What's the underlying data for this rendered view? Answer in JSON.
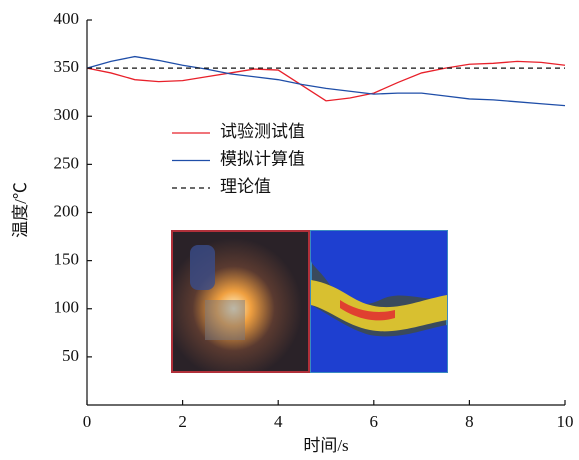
{
  "chart_data": {
    "type": "line",
    "x_label": "时间/s",
    "y_label": "温度/℃",
    "x": [
      0,
      0.5,
      1,
      1.5,
      2,
      2.5,
      3,
      3.5,
      4,
      4.5,
      5,
      5.5,
      6,
      6.5,
      7,
      7.5,
      8,
      8.5,
      9,
      9.5,
      10
    ],
    "series": [
      {
        "name": "试验测试值",
        "color": "#e8202a",
        "dash": false,
        "values": [
          350,
          345,
          338,
          336,
          337,
          341,
          345,
          349,
          348,
          332,
          316,
          319,
          324,
          335,
          345,
          350,
          354,
          355,
          357,
          356,
          353
        ]
      },
      {
        "name": "模拟计算值",
        "color": "#1f4ea8",
        "dash": false,
        "values": [
          350,
          357,
          362,
          358,
          353,
          349,
          344,
          341,
          338,
          333,
          329,
          326,
          323,
          324,
          324,
          321,
          318,
          317,
          315,
          313,
          311
        ]
      },
      {
        "name": "理论值",
        "color": "#111111",
        "dash": true,
        "values": [
          350,
          350,
          350,
          350,
          350,
          350,
          350,
          350,
          350,
          350,
          350,
          350,
          350,
          350,
          350,
          350,
          350,
          350,
          350,
          350,
          350
        ]
      }
    ],
    "xlim": [
      0,
      10
    ],
    "xticks": [
      0,
      2,
      4,
      6,
      8,
      10
    ],
    "ylim": [
      0,
      400
    ],
    "yticks": [
      50,
      100,
      150,
      200,
      250,
      300,
      350,
      400
    ]
  }
}
